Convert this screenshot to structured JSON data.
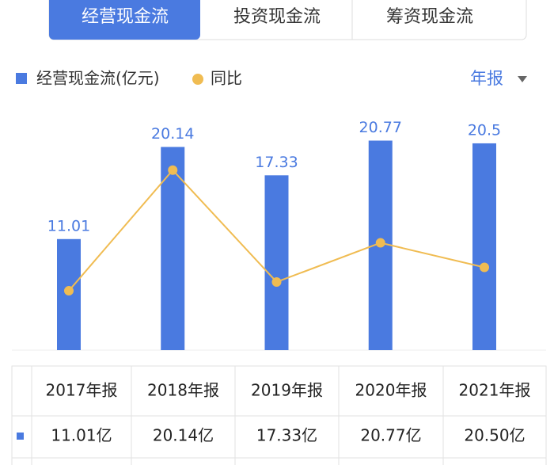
{
  "ui": {
    "tabs": [
      "经营现金流",
      "投资现金流",
      "筹资现金流"
    ],
    "period": "年报"
  },
  "chart_data": {
    "type": "bar_line",
    "categories": [
      "2017年报",
      "2018年报",
      "2019年报",
      "2020年报",
      "2021年报"
    ],
    "series": [
      {
        "name": "经营现金流(亿元)",
        "color": "#4a7ae0",
        "values": [
          11.01,
          20.14,
          17.33,
          20.77,
          20.5
        ],
        "value_labels": [
          "11.01亿",
          "20.14亿",
          "17.33亿",
          "20.77亿",
          "20.50亿"
        ]
      },
      {
        "name": "同比",
        "color": "#f0bc52",
        "axis": "y2",
        "values": [
          -21.6,
          82.9,
          -14.0,
          19.9,
          -1.3
        ]
      }
    ],
    "ylim": [
      0,
      24.5
    ],
    "y2lim": [
      -73,
      141
    ]
  }
}
